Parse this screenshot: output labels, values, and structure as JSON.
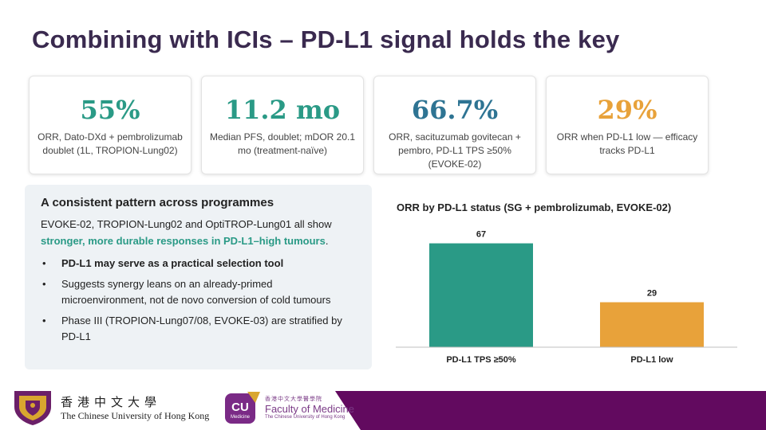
{
  "title": "Combining with ICIs – PD-L1 signal holds the key",
  "colors": {
    "teal": "#2a9a86",
    "blue": "#2e7493",
    "orange": "#e8a23a",
    "purple": "#620a5f"
  },
  "cards": [
    {
      "value": "55%",
      "desc": "ORR, Dato-DXd + pembrolizumab doublet (1L, TROPION-Lung02)",
      "color": "#2a9a86"
    },
    {
      "value": "11.2 mo",
      "desc": "Median PFS, doublet; mDOR 20.1 mo (treatment-naïve)",
      "color": "#2a9a86"
    },
    {
      "value": "66.7%",
      "desc": "ORR, sacituzumab govitecan + pembro, PD-L1 TPS ≥50% (EVOKE-02)",
      "color": "#2e7493"
    },
    {
      "value": "29%",
      "desc": "ORR when PD-L1 low — efficacy tracks PD-L1",
      "color": "#e8a23a"
    }
  ],
  "panel": {
    "heading": "A consistent pattern across programmes",
    "intro_plain": "EVOKE-02, TROPION-Lung02 and OptiTROP-Lung01 all show ",
    "intro_highlight": "stronger, more durable responses in PD-L1–high tumours",
    "intro_end": ".",
    "bullets": [
      "PD-L1 may serve as a practical selection tool",
      "Suggests synergy leans on an already-primed microenvironment, not de novo conversion of cold tumours",
      "Phase III (TROPION-Lung07/08, EVOKE-03) are stratified by PD-L1"
    ]
  },
  "chart_data": {
    "type": "bar",
    "title": "ORR by PD-L1 status (SG + pembrolizumab, EVOKE-02)",
    "categories": [
      "PD-L1 TPS ≥50%",
      "PD-L1 low"
    ],
    "values": [
      67,
      29
    ],
    "colors": [
      "#2a9a86",
      "#e8a23a"
    ],
    "ylim": [
      0,
      75
    ],
    "grid": false,
    "data_labels": true
  },
  "footer": {
    "cuhk_zh": "香港中文大學",
    "cuhk_en": "The Chinese University of Hong Kong",
    "med_badge": "CU",
    "med_badge_sub": "Medicine",
    "med_zh": "香港中文大學醫學院",
    "med_en": "Faculty of Medicine",
    "med_sub": "The Chinese University of Hong Kong"
  }
}
